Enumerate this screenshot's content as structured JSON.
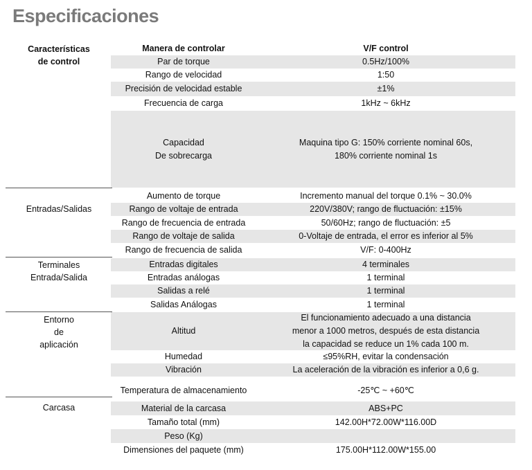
{
  "title": "Especificaciones",
  "sections": {
    "control": "Características\nde control",
    "io": "Entradas/Salidas",
    "terminals": "Terminales\nEntrada/Salida",
    "environment": "Entorno\nde\naplicación",
    "housing": "Carcasa"
  },
  "header": {
    "col1": "Manera de controlar",
    "col2": "V/F control"
  },
  "rows": [
    {
      "label": "Par de torque",
      "value": "0.5Hz/100%"
    },
    {
      "label": "Rango de velocidad",
      "value": "1:50"
    },
    {
      "label": "Precisión de velocidad estable",
      "value": "±1%"
    },
    {
      "label": "Frecuencia de carga",
      "value": "1kHz  ~  6kHz"
    },
    {
      "label": "Capacidad\nDe sobrecarga",
      "value": "Maquina tipo G: 150% corriente nominal 60s,\n180% corriente nominal 1s"
    },
    {
      "label": "Aumento de torque",
      "value": "Incremento manual del torque 0.1% ~ 30.0%"
    },
    {
      "label": "Rango de voltaje de entrada",
      "value": "220V/380V; rango de fluctuación: ±15%"
    },
    {
      "label": "Rango de frecuencia de entrada",
      "value": "50/60Hz; rango de fluctuación: ±5"
    },
    {
      "label": "Rango de voltaje de salida",
      "value": "0-Voltaje de entrada, el error es inferior al 5%"
    },
    {
      "label": "Rango de frecuencia de salida",
      "value": "V/F: 0-400Hz"
    },
    {
      "label": "Entradas digitales",
      "value": "4 terminales"
    },
    {
      "label": "Entradas análogas",
      "value": "1 terminal"
    },
    {
      "label": "Salidas a relé",
      "value": "1 terminal"
    },
    {
      "label": "Salidas Análogas",
      "value": "1 terminal"
    },
    {
      "label": "Altitud",
      "value": "El funcionamiento adecuado a una distancia\nmenor a 1000 metros, después de esta distancia\nla capacidad se reduce un 1% cada 100 m."
    },
    {
      "label": "Humedad",
      "value": "≤95%RH, evitar la condensación"
    },
    {
      "label": "Vibración",
      "value": "La aceleración de la vibración es inferior a 0,6 g."
    },
    {
      "label": "Temperatura de almacenamiento",
      "value": "-25℃ ~ +60℃"
    },
    {
      "label": "Material de la carcasa",
      "value": "ABS+PC"
    },
    {
      "label": "Tamaño total (mm)",
      "value": "142.00H*72.00W*116.00D"
    },
    {
      "label": "Peso (Kg)",
      "value": ""
    },
    {
      "label": "Dimensiones del paquete (mm)",
      "value": "175.00H*112.00W*155.00"
    }
  ]
}
